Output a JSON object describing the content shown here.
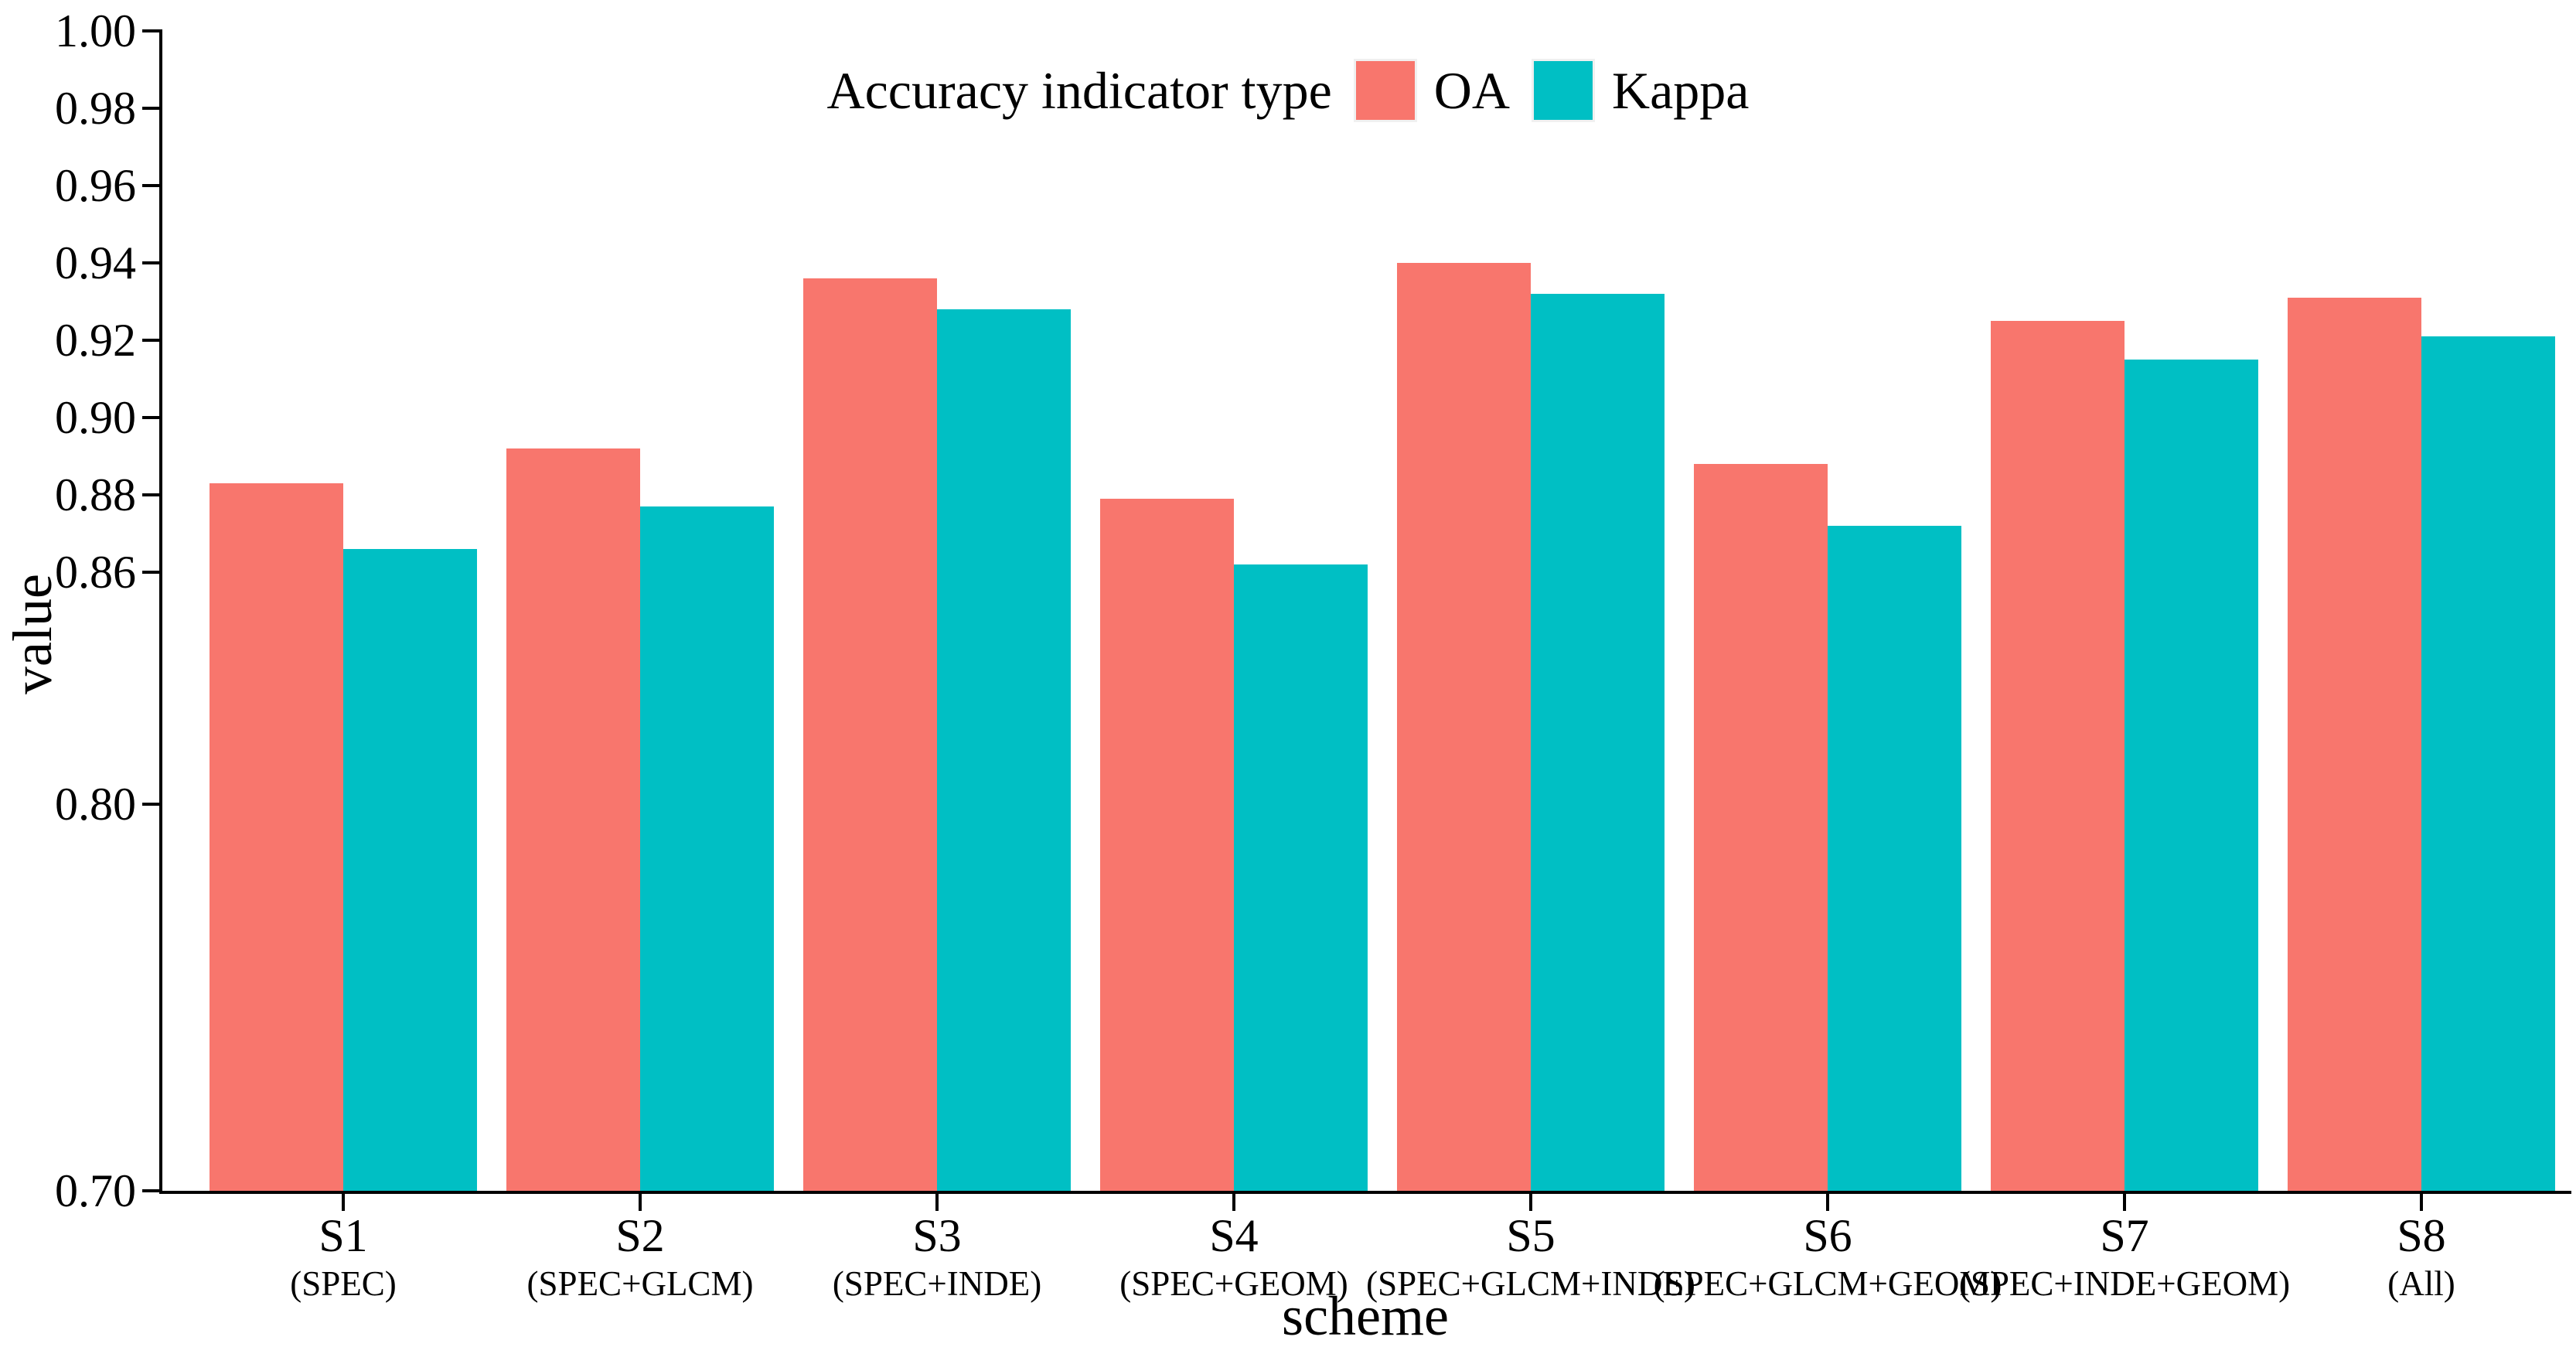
{
  "chart_data": {
    "type": "bar",
    "title": "",
    "legend_title": "Accuracy indicator type",
    "legend_position": "top-center",
    "xlabel": "scheme",
    "ylabel": "value",
    "ylim": [
      0.7,
      1.0
    ],
    "grid": false,
    "background": "#FFFFFF",
    "axis_color": "#000000",
    "categories": [
      {
        "label": "S1",
        "sublabel": "(SPEC)"
      },
      {
        "label": "S2",
        "sublabel": "(SPEC+GLCM)"
      },
      {
        "label": "S3",
        "sublabel": "(SPEC+INDE)"
      },
      {
        "label": "S4",
        "sublabel": "(SPEC+GEOM)"
      },
      {
        "label": "S5",
        "sublabel": "(SPEC+GLCM+INDE)"
      },
      {
        "label": "S6",
        "sublabel": "(SPEC+GLCM+GEOM)"
      },
      {
        "label": "S7",
        "sublabel": "(SPEC+INDE+GEOM)"
      },
      {
        "label": "S8",
        "sublabel": "(All)"
      }
    ],
    "series": [
      {
        "name": "OA",
        "color": "#F8766D",
        "values": [
          0.883,
          0.892,
          0.936,
          0.879,
          0.94,
          0.888,
          0.925,
          0.931
        ]
      },
      {
        "name": "Kappa",
        "color": "#00BFC4",
        "values": [
          0.866,
          0.877,
          0.928,
          0.862,
          0.932,
          0.872,
          0.915,
          0.921
        ]
      }
    ],
    "y_ticks": [
      {
        "value": 0.7,
        "label": "0.70"
      },
      {
        "value": 0.8,
        "label": "0.80"
      },
      {
        "value": 0.86,
        "label": "0.86"
      },
      {
        "value": 0.88,
        "label": "0.88"
      },
      {
        "value": 0.9,
        "label": "0.90"
      },
      {
        "value": 0.92,
        "label": "0.92"
      },
      {
        "value": 0.94,
        "label": "0.94"
      },
      {
        "value": 0.96,
        "label": "0.96"
      },
      {
        "value": 0.98,
        "label": "0.98"
      },
      {
        "value": 1.0,
        "label": "1.00"
      }
    ]
  }
}
